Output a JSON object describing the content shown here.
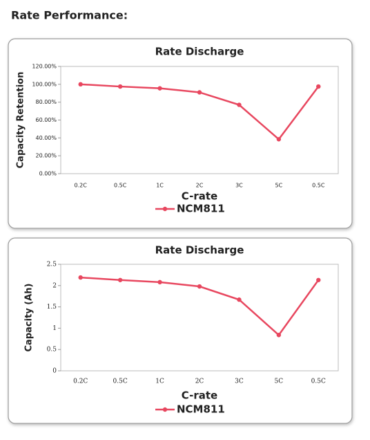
{
  "heading": "Rate Performance:",
  "chart_data": [
    {
      "type": "line",
      "title": "Rate Discharge",
      "x_label": "C-rate",
      "y_label": "Capacity Retention",
      "categories": [
        "0.2C",
        "0.5C",
        "1C",
        "2C",
        "3C",
        "5C",
        "0.5C"
      ],
      "series": [
        {
          "name": "NCM811",
          "color": "#e8475f",
          "values": [
            100,
            97.5,
            95.5,
            91,
            77,
            38.5,
            97.5
          ]
        }
      ],
      "ylim": [
        0,
        120
      ],
      "yticks": [
        {
          "value": 0,
          "label": "0.00%"
        },
        {
          "value": 20,
          "label": "20.00%"
        },
        {
          "value": 40,
          "label": "40.00%"
        },
        {
          "value": 60,
          "label": "60.00%"
        },
        {
          "value": 80,
          "label": "80.00%"
        },
        {
          "value": 100,
          "label": "100.00%"
        },
        {
          "value": 120,
          "label": "120.00%"
        }
      ]
    },
    {
      "type": "line",
      "title": "Rate Discharge",
      "x_label": "C-rate",
      "y_label": "Capacity (Ah)",
      "categories": [
        "0.2C",
        "0.5C",
        "1C",
        "2C",
        "3C",
        "5C",
        "0.5C"
      ],
      "series": [
        {
          "name": "NCM811",
          "color": "#e8475f",
          "values": [
            2.19,
            2.13,
            2.08,
            1.98,
            1.67,
            0.84,
            2.13
          ]
        }
      ],
      "ylim": [
        0,
        2.5
      ],
      "yticks": [
        0,
        0.5,
        1,
        1.5,
        2,
        2.5
      ]
    }
  ]
}
